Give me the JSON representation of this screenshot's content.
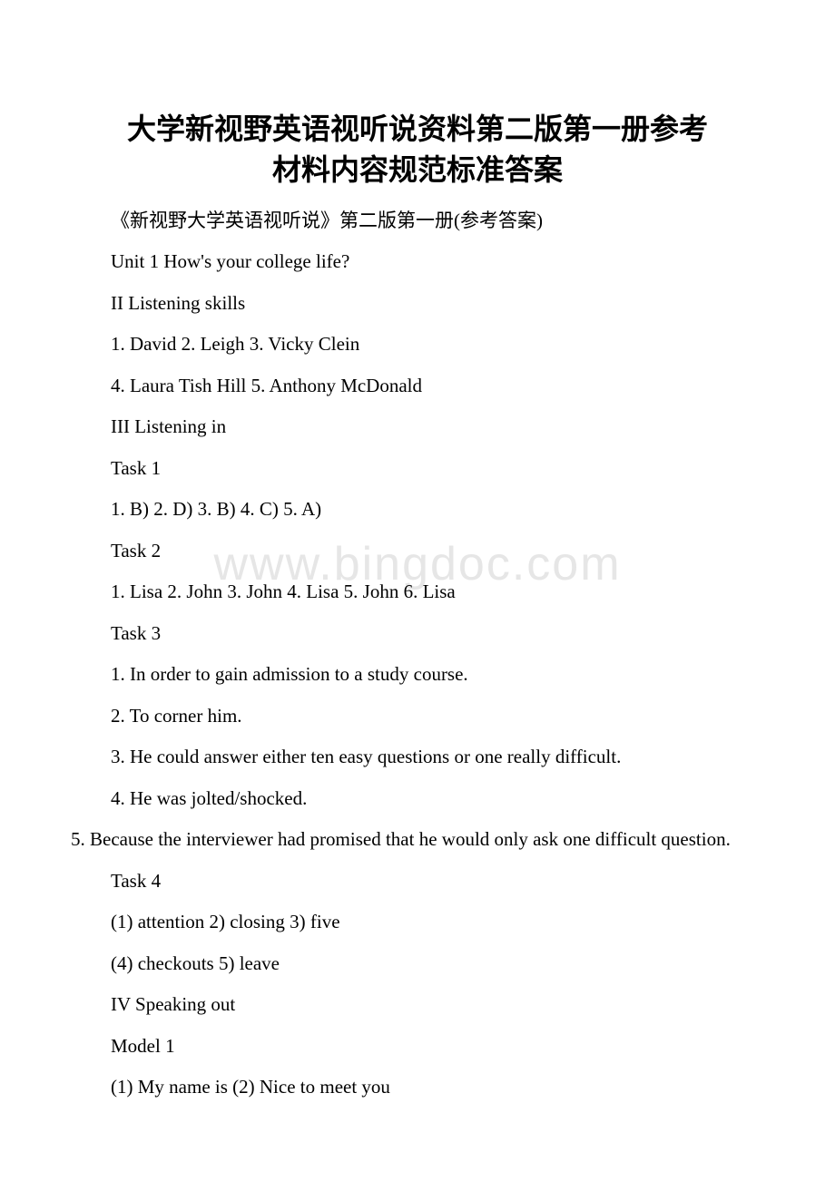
{
  "title_line1": "大学新视野英语视听说资料第二版第一册参考",
  "title_line2": "材料内容规范标准答案",
  "watermark": "www.bingdoc.com",
  "lines": [
    "《新视野大学英语视听说》第二版第一册(参考答案)",
    "Unit 1 How's your college life?",
    "II Listening skills",
    "1. David       2. Leigh       3. Vicky Clein",
    "4. Laura Tish Hill     5. Anthony McDonald",
    "III Listening in",
    "Task 1",
    "1. B)  2. D)  3. B)  4. C)  5. A)",
    "Task 2",
    "1. Lisa  2. John  3. John  4. Lisa  5. John  6. Lisa",
    "Task 3",
    "1. In order to gain admission to a study course.",
    "2. To corner him.",
    "3. He could answer either ten easy questions or one really difficult.",
    "4. He was jolted/shocked.",
    "5. Because the interviewer had promised that he would only ask one difficult question.",
    "Task 4",
    "(1) attention      2) closing      3) five",
    "(4) checkouts      5) leave",
    "IV Speaking out",
    "Model 1",
    "(1) My name is          (2) Nice to meet you"
  ],
  "line_15_noindent": true
}
